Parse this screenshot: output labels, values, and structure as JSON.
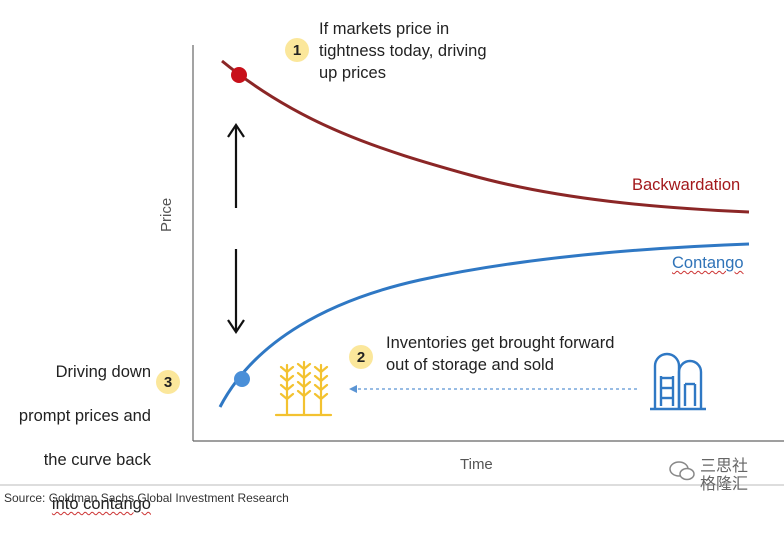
{
  "axes": {
    "y_label": "Price",
    "x_label": "Time"
  },
  "curves": {
    "backwardation": {
      "label": "Backwardation",
      "color": "#a3181b",
      "line_color": "#8b2626"
    },
    "contango": {
      "label": "Contango",
      "color": "#2f73b8",
      "line_color": "#2f78c4"
    }
  },
  "annotations": [
    {
      "number": "1",
      "text": "If markets price in\ntightness today, driving\nup prices"
    },
    {
      "number": "2",
      "text": "Inventories get brought forward\nout of storage and sold"
    },
    {
      "number": "3",
      "text_lines": [
        "Driving down",
        "prompt prices and",
        "the curve back",
        "into contango"
      ]
    }
  ],
  "icons": [
    "wheat-icon",
    "grain-silo-icon",
    "up-arrow-icon",
    "down-arrow-icon"
  ],
  "colors": {
    "badge": "#fbe79b",
    "wheat": "#f3c230",
    "silo": "#2f78c4"
  },
  "source": "Source: Goldman Sachs Global Investment Research",
  "watermark": "三思社\n格隆汇"
}
